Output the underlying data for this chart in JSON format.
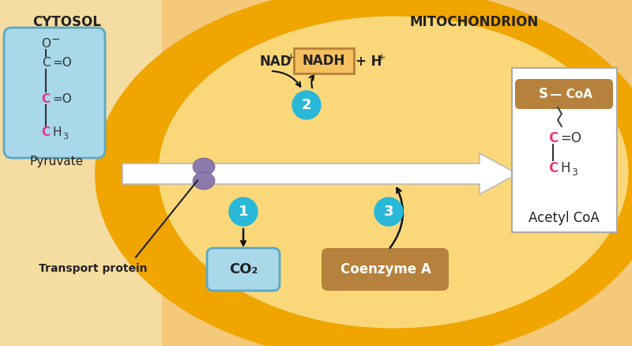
{
  "bg_outer": "#F5C97A",
  "bg_inner_ellipse_color": "#F0A500",
  "bg_inner_light": "#FAD87A",
  "bg_cytosol": "#F5DCA0",
  "cytosol_label": "CYTOSOL",
  "mito_label": "MITOCHONDRION",
  "pyruvate_label": "Pyruvate",
  "transport_label": "Transport protein",
  "acetylcoa_label": "Acetyl CoA",
  "co2_text": "CO₂",
  "coenzymeA_text": "Coenzyme A",
  "blue_color": "#29B8D8",
  "purple_color": "#8B7BAD",
  "co2_fill": "#A8D8EA",
  "co2_edge": "#5BA8C4",
  "coenzyme_fill": "#B5813C",
  "nadh_fill": "#F5C060",
  "nadh_edge": "#B5813C",
  "acetyl_fill": "#FFFFFF",
  "scoA_fill": "#B5813C",
  "pyruvate_fill": "#A8D8EA",
  "pyruvate_edge": "#5BA8C4",
  "pink": "#E8388A",
  "dark": "#222222",
  "arrow_color": "#111111",
  "label1": "1",
  "label2": "2",
  "label3": "3"
}
